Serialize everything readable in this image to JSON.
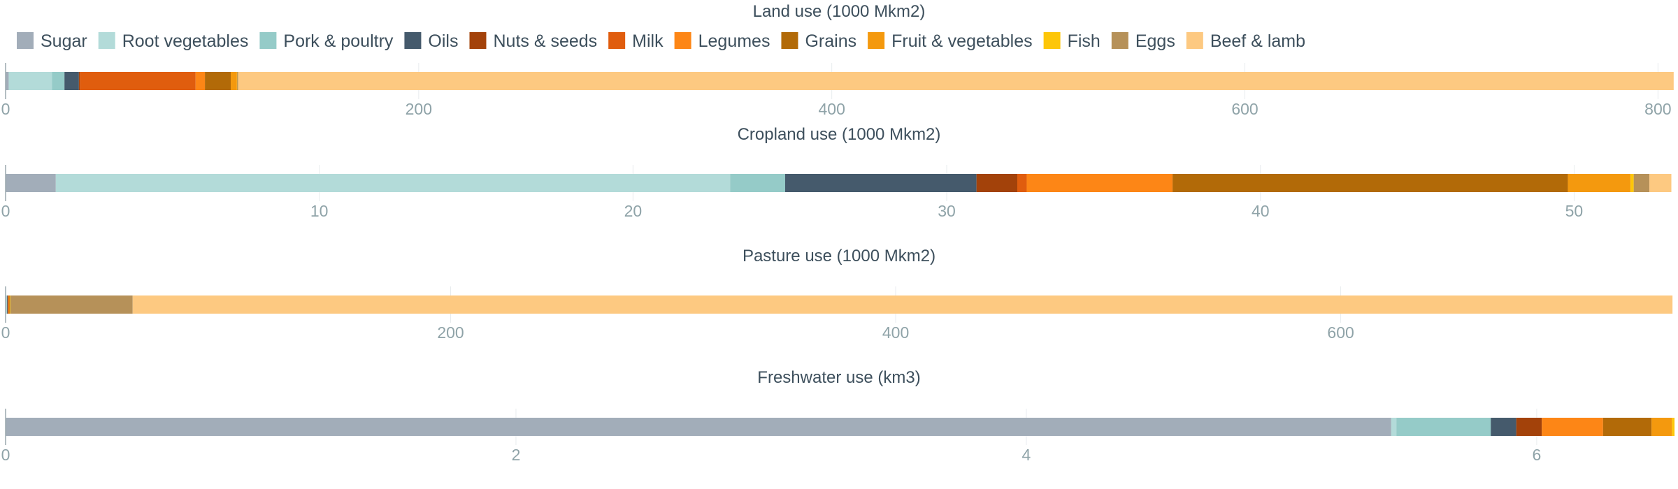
{
  "chart_data": {
    "type": "bar",
    "orientation": "horizontal",
    "stacked": true,
    "legend_position": "top-left",
    "grid": true,
    "categories": [
      "Sugar",
      "Root vegetables",
      "Pork & poultry",
      "Oils",
      "Nuts & seeds",
      "Milk",
      "Legumes",
      "Grains",
      "Fruit & vegetables",
      "Fish",
      "Eggs",
      "Beef & lamb"
    ],
    "colors": [
      "#a2adb9",
      "#b3dbd9",
      "#95cbc8",
      "#455a6c",
      "#a3420a",
      "#e05d0e",
      "#fd8616",
      "#b26a08",
      "#f4990e",
      "#fdc609",
      "#b69159",
      "#fdc981"
    ],
    "panels": [
      {
        "title": "Land use (1000 Mkm2)",
        "xlim": [
          0,
          808
        ],
        "xticks": [
          0,
          200,
          400,
          600,
          800
        ],
        "values": [
          1.5,
          21,
          6,
          7,
          0.5,
          56,
          4.5,
          12.5,
          3,
          0.1,
          0.5,
          695
        ]
      },
      {
        "title": "Cropland use (1000 Mkm2)",
        "xlim": [
          0,
          53.2
        ],
        "xticks": [
          0,
          10,
          20,
          30,
          40,
          50
        ],
        "values": [
          1.6,
          21.5,
          1.75,
          6.1,
          1.3,
          0.3,
          4.65,
          12.6,
          2.0,
          0.1,
          0.5,
          0.7
        ]
      },
      {
        "title": "Pasture use (1000 Mkm2)",
        "xlim": [
          0,
          750
        ],
        "xticks": [
          0,
          200,
          400,
          600
        ],
        "values": [
          0.3,
          0.2,
          0.2,
          0.2,
          0.2,
          0.2,
          0.2,
          0.2,
          0.2,
          0.2,
          55,
          692
        ]
      },
      {
        "title": "Freshwater use (km3)",
        "xlim": [
          0,
          6.54
        ],
        "xticks": [
          0,
          2,
          4,
          6
        ],
        "values": [
          5.43,
          0.02,
          0.37,
          0.1,
          0.1,
          0.0,
          0.24,
          0.19,
          0.08,
          0.01,
          0.0,
          0.0
        ]
      }
    ]
  }
}
